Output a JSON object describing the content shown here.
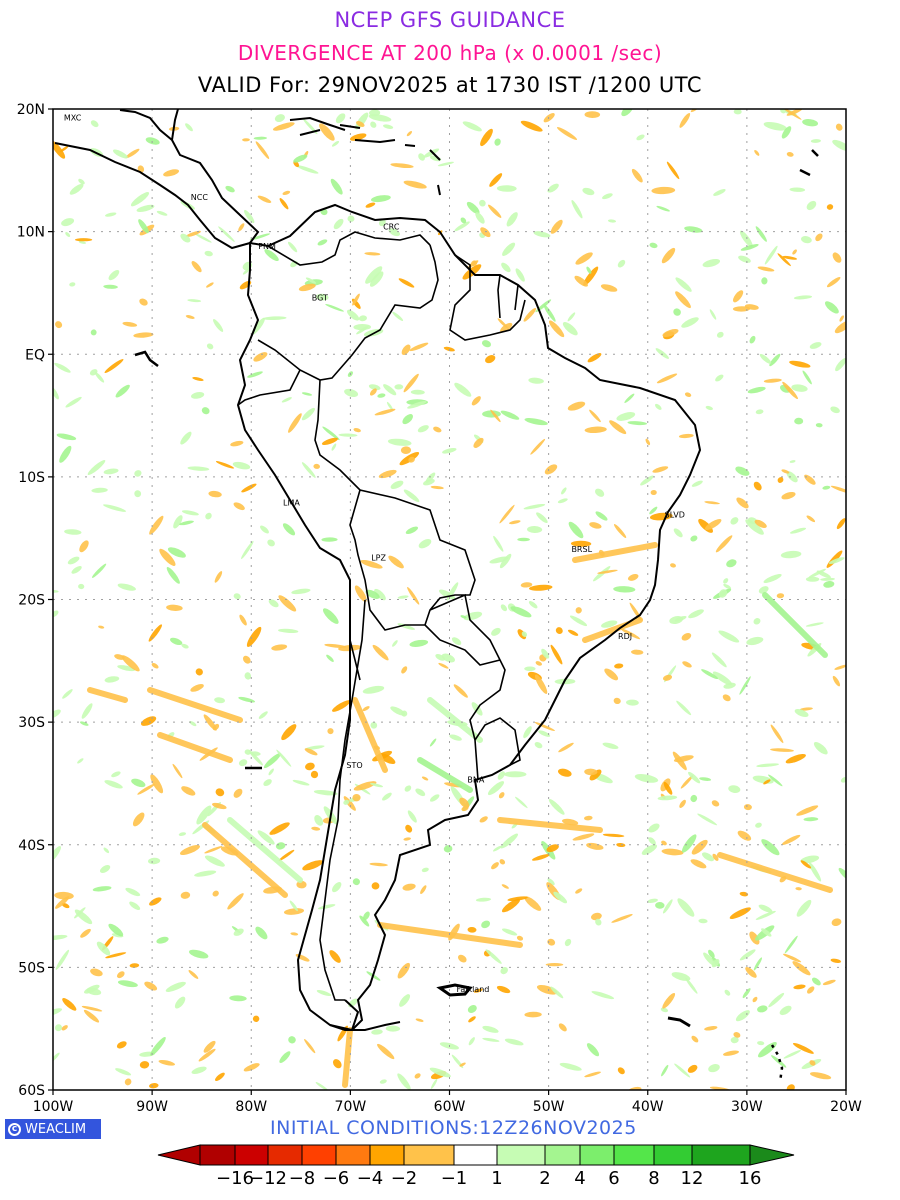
{
  "titles": {
    "line1": "NCEP GFS GUIDANCE",
    "line2": "DIVERGENCE AT 200 hPa (x 0.0001 /sec)",
    "line3": "VALID For: 29NOV2025 at 1730 IST /1200 UTC"
  },
  "colors": {
    "line1": "#8a2be2",
    "line2": "#ff1493",
    "line3": "#000000",
    "initial": "#4169e1",
    "logo_bg": "#3355dd",
    "coast": "#000000",
    "grid": "#a0a0a0"
  },
  "map": {
    "lon_range": [
      -100,
      -20
    ],
    "lat_range": [
      -60,
      20
    ],
    "lat_labels": [
      {
        "lat": 20,
        "text": "20N"
      },
      {
        "lat": 10,
        "text": "10N"
      },
      {
        "lat": 0,
        "text": "EQ"
      },
      {
        "lat": -10,
        "text": "10S"
      },
      {
        "lat": -20,
        "text": "20S"
      },
      {
        "lat": -30,
        "text": "30S"
      },
      {
        "lat": -40,
        "text": "40S"
      },
      {
        "lat": -50,
        "text": "50S"
      },
      {
        "lat": -60,
        "text": "60S"
      }
    ],
    "lon_labels": [
      {
        "lon": -100,
        "text": "100W"
      },
      {
        "lon": -90,
        "text": "90W"
      },
      {
        "lon": -80,
        "text": "80W"
      },
      {
        "lon": -70,
        "text": "70W"
      },
      {
        "lon": -60,
        "text": "60W"
      },
      {
        "lon": -50,
        "text": "50W"
      },
      {
        "lon": -40,
        "text": "40W"
      },
      {
        "lon": -30,
        "text": "30W"
      },
      {
        "lon": -20,
        "text": "20W"
      }
    ],
    "cities": [
      {
        "name": "MXC",
        "lon": -99.1,
        "lat": 19.4
      },
      {
        "name": "NCC",
        "lon": -86.3,
        "lat": 12.9
      },
      {
        "name": "PNM",
        "lon": -79.5,
        "lat": 8.9
      },
      {
        "name": "CRC",
        "lon": -66.9,
        "lat": 10.5
      },
      {
        "name": "BGT",
        "lon": -74.1,
        "lat": 4.7
      },
      {
        "name": "LMA",
        "lon": -77.0,
        "lat": -12.0
      },
      {
        "name": "LPZ",
        "lon": -68.1,
        "lat": -16.5
      },
      {
        "name": "BRSL",
        "lon": -47.9,
        "lat": -15.8
      },
      {
        "name": "SLVD",
        "lon": -38.5,
        "lat": -13.0
      },
      {
        "name": "RDJ",
        "lon": -43.2,
        "lat": -22.9
      },
      {
        "name": "STO",
        "lon": -70.6,
        "lat": -33.4
      },
      {
        "name": "BNA",
        "lon": -58.4,
        "lat": -34.6
      },
      {
        "name": "Falkland",
        "lon": -59.5,
        "lat": -51.7
      }
    ]
  },
  "logo": {
    "text": "WEACLIM",
    "icon": "copyright-circle-icon"
  },
  "initial_conditions": "INITIAL  CONDITIONS:12Z26NOV2025",
  "colorbar": {
    "labels": [
      "−16",
      "−12",
      "−8",
      "−6",
      "−4",
      "−2",
      "−1",
      "1",
      "2",
      "4",
      "6",
      "8",
      "12",
      "16"
    ],
    "colors": [
      "#b00000",
      "#cc0000",
      "#e62a00",
      "#ff4000",
      "#ff7a10",
      "#ffa500",
      "#ffc24a",
      "#ffffff",
      "#c6fcb4",
      "#a4f590",
      "#7cee6c",
      "#54e64a",
      "#33cc33",
      "#1ea51e",
      "#1b8a1b"
    ]
  }
}
